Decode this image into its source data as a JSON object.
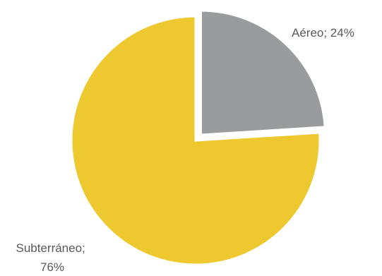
{
  "chart_data": {
    "type": "pie",
    "slices": [
      {
        "name": "Aéreo",
        "value": 24,
        "label": "Aéreo; 24%",
        "color": "#9a9b9d",
        "exploded": true
      },
      {
        "name": "Subterráneo",
        "value": 76,
        "label_lines": [
          "Subterráneo;",
          "76%"
        ],
        "color": "#edc82f",
        "exploded": false
      }
    ],
    "start_angle": "top",
    "direction": "clockwise",
    "legend": "none"
  }
}
